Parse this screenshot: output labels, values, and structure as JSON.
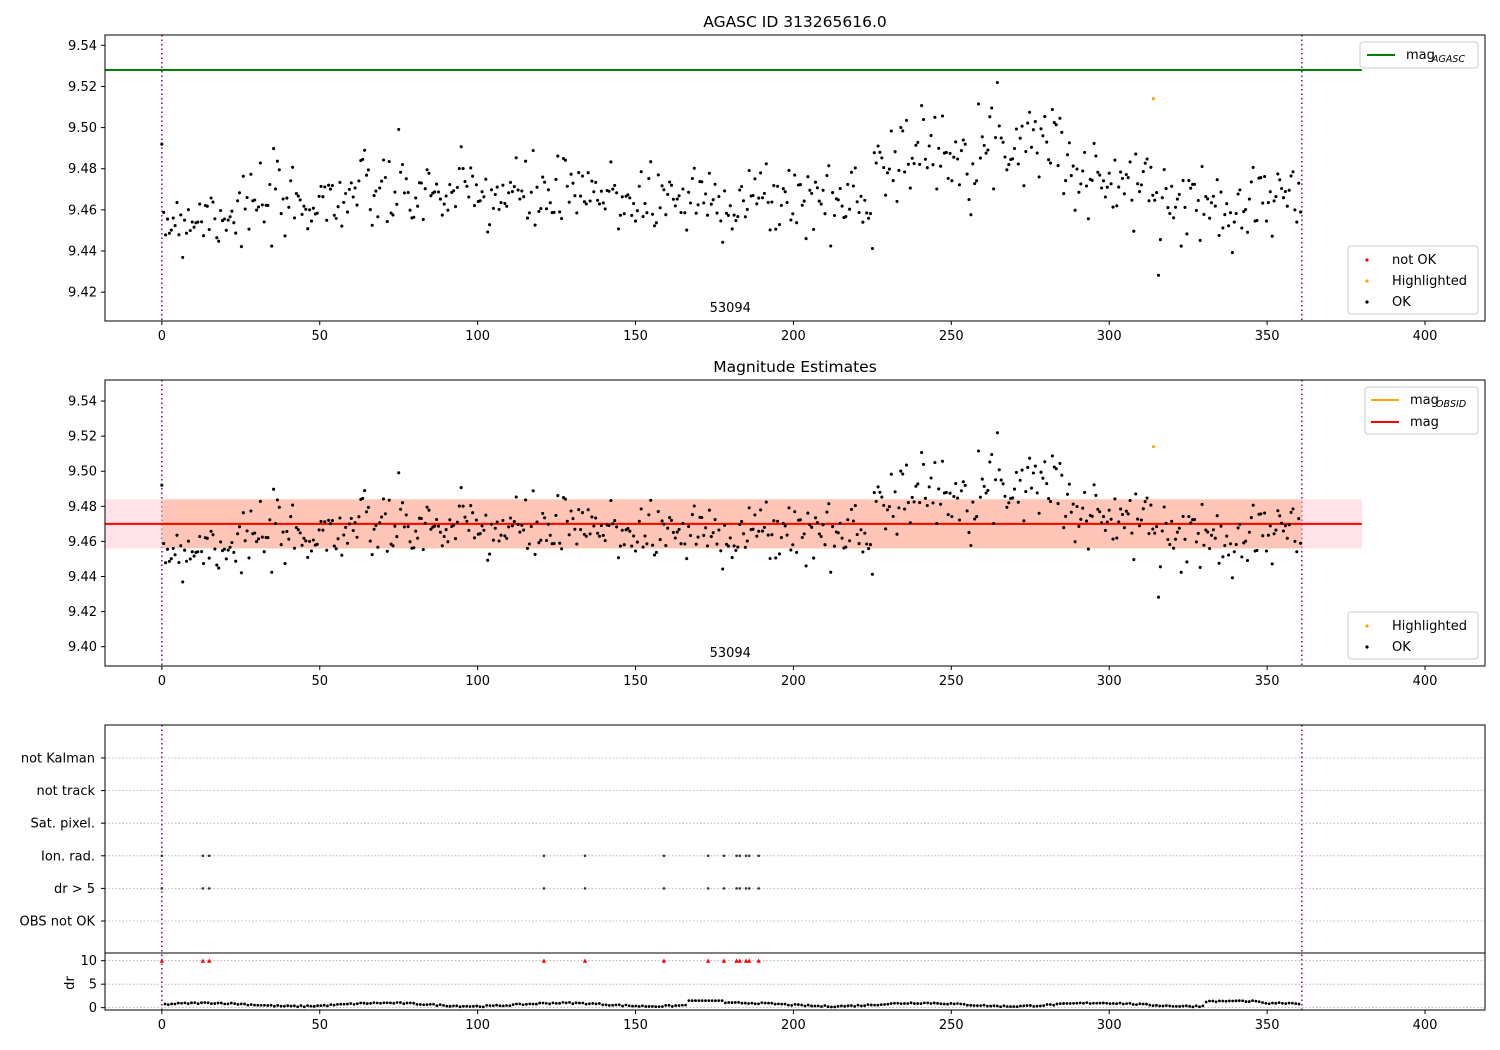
{
  "chart_data": [
    {
      "type": "scatter",
      "title": "AGASC ID 313265616.0",
      "xlim": [
        -18,
        419
      ],
      "ylim": [
        9.406,
        9.545
      ],
      "x_ticks": [
        0,
        50,
        100,
        150,
        200,
        250,
        300,
        350,
        400
      ],
      "y_ticks": [
        9.42,
        9.44,
        9.46,
        9.48,
        9.5,
        9.52,
        9.54
      ],
      "mag_aca": 9.528,
      "mag_aca_xrange": [
        -18,
        380
      ],
      "vlines": [
        0,
        361
      ],
      "annotation": {
        "text": "53094",
        "x": 180
      },
      "legend_top": [
        {
          "label": "mag",
          "sub": "AGASC",
          "color": "#008000"
        }
      ],
      "legend_bottom": [
        {
          "label": "not OK",
          "color": "#ff0000"
        },
        {
          "label": "Highlighted",
          "color": "#ffa500"
        },
        {
          "label": "OK",
          "color": "#000000"
        }
      ],
      "highlighted": [
        [
          314,
          9.514
        ]
      ],
      "point_range": [
        0,
        361
      ]
    },
    {
      "type": "scatter",
      "title": "Magnitude Estimates",
      "xlim": [
        -18,
        419
      ],
      "ylim": [
        9.389,
        9.552
      ],
      "x_ticks": [
        0,
        50,
        100,
        150,
        200,
        250,
        300,
        350,
        400
      ],
      "y_ticks": [
        9.4,
        9.42,
        9.44,
        9.46,
        9.48,
        9.5,
        9.52,
        9.54
      ],
      "mag_obsid": 9.47,
      "mag": 9.47,
      "band_pink": [
        9.456,
        9.484
      ],
      "band_orange": [
        9.456,
        9.484
      ],
      "band_xrange_pink": [
        -18,
        380
      ],
      "band_xrange_orange": [
        0,
        361
      ],
      "vlines": [
        0,
        361
      ],
      "annotation": {
        "text": "53094",
        "x": 180
      },
      "legend_top": [
        {
          "label": "mag",
          "sub": "OBSID",
          "color": "#ffa500"
        },
        {
          "label": "mag",
          "sub": "",
          "color": "#ff0000"
        }
      ],
      "legend_bottom": [
        {
          "label": "Highlighted",
          "color": "#ffa500"
        },
        {
          "label": "OK",
          "color": "#000000"
        }
      ],
      "highlighted": [
        [
          314,
          9.514
        ]
      ],
      "point_range": [
        0,
        361
      ]
    },
    {
      "type": "scatter",
      "xlim": [
        -18,
        419
      ],
      "x_ticks": [
        0,
        50,
        100,
        150,
        200,
        250,
        300,
        350,
        400
      ],
      "flag_categories": [
        "OBS not OK",
        "dr > 5",
        "Ion. rad.",
        "Sat. pixel.",
        "not track",
        "not Kalman"
      ],
      "flag_points": {
        "dr > 5": [
          0,
          13,
          15,
          121,
          134,
          159,
          173,
          178,
          182,
          183,
          185,
          186,
          189
        ],
        "Ion. rad.": [
          0,
          13,
          15,
          121,
          134,
          159,
          173,
          178,
          182,
          183,
          185,
          186,
          189
        ]
      },
      "dr_ylim": [
        -0.5,
        11
      ],
      "dr_ticks": [
        0,
        5,
        10
      ],
      "dr_ylabel": "dr",
      "dr_high": [
        0,
        13,
        15,
        121,
        134,
        159,
        173,
        178,
        182,
        183,
        185,
        186,
        189
      ],
      "vlines": [
        0,
        361
      ]
    }
  ]
}
